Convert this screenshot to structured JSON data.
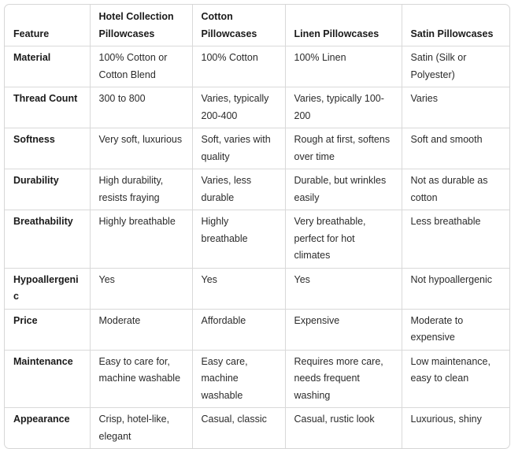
{
  "table": {
    "headers": [
      "Feature",
      "Hotel Collection Pillowcases",
      "Cotton Pillowcases",
      "Linen Pillowcases",
      "Satin Pillowcases"
    ],
    "rows": [
      [
        "Material",
        "100% Cotton or Cotton Blend",
        "100% Cotton",
        "100% Linen",
        "Satin (Silk or Polyester)"
      ],
      [
        "Thread Count",
        "300 to 800",
        "Varies, typically 200-400",
        "Varies, typically 100-200",
        "Varies"
      ],
      [
        "Softness",
        "Very soft, luxurious",
        "Soft, varies with quality",
        "Rough at first, softens over time",
        "Soft and smooth"
      ],
      [
        "Durability",
        "High durability, resists fraying",
        "Varies, less durable",
        "Durable, but wrinkles easily",
        "Not as durable as cotton"
      ],
      [
        "Breathability",
        "Highly breathable",
        "Highly breathable",
        "Very breathable, perfect for hot climates",
        "Less breathable"
      ],
      [
        "Hypoallergenic",
        "Yes",
        "Yes",
        "Yes",
        "Not hypoallergenic"
      ],
      [
        "Price",
        "Moderate",
        "Affordable",
        "Expensive",
        "Moderate to expensive"
      ],
      [
        "Maintenance",
        "Easy to care for, machine washable",
        "Easy care, machine washable",
        "Requires more care, needs frequent washing",
        "Low maintenance, easy to clean"
      ],
      [
        "Appearance",
        "Crisp, hotel-like, elegant",
        "Casual, classic",
        "Casual, rustic look",
        "Luxurious, shiny"
      ]
    ]
  }
}
